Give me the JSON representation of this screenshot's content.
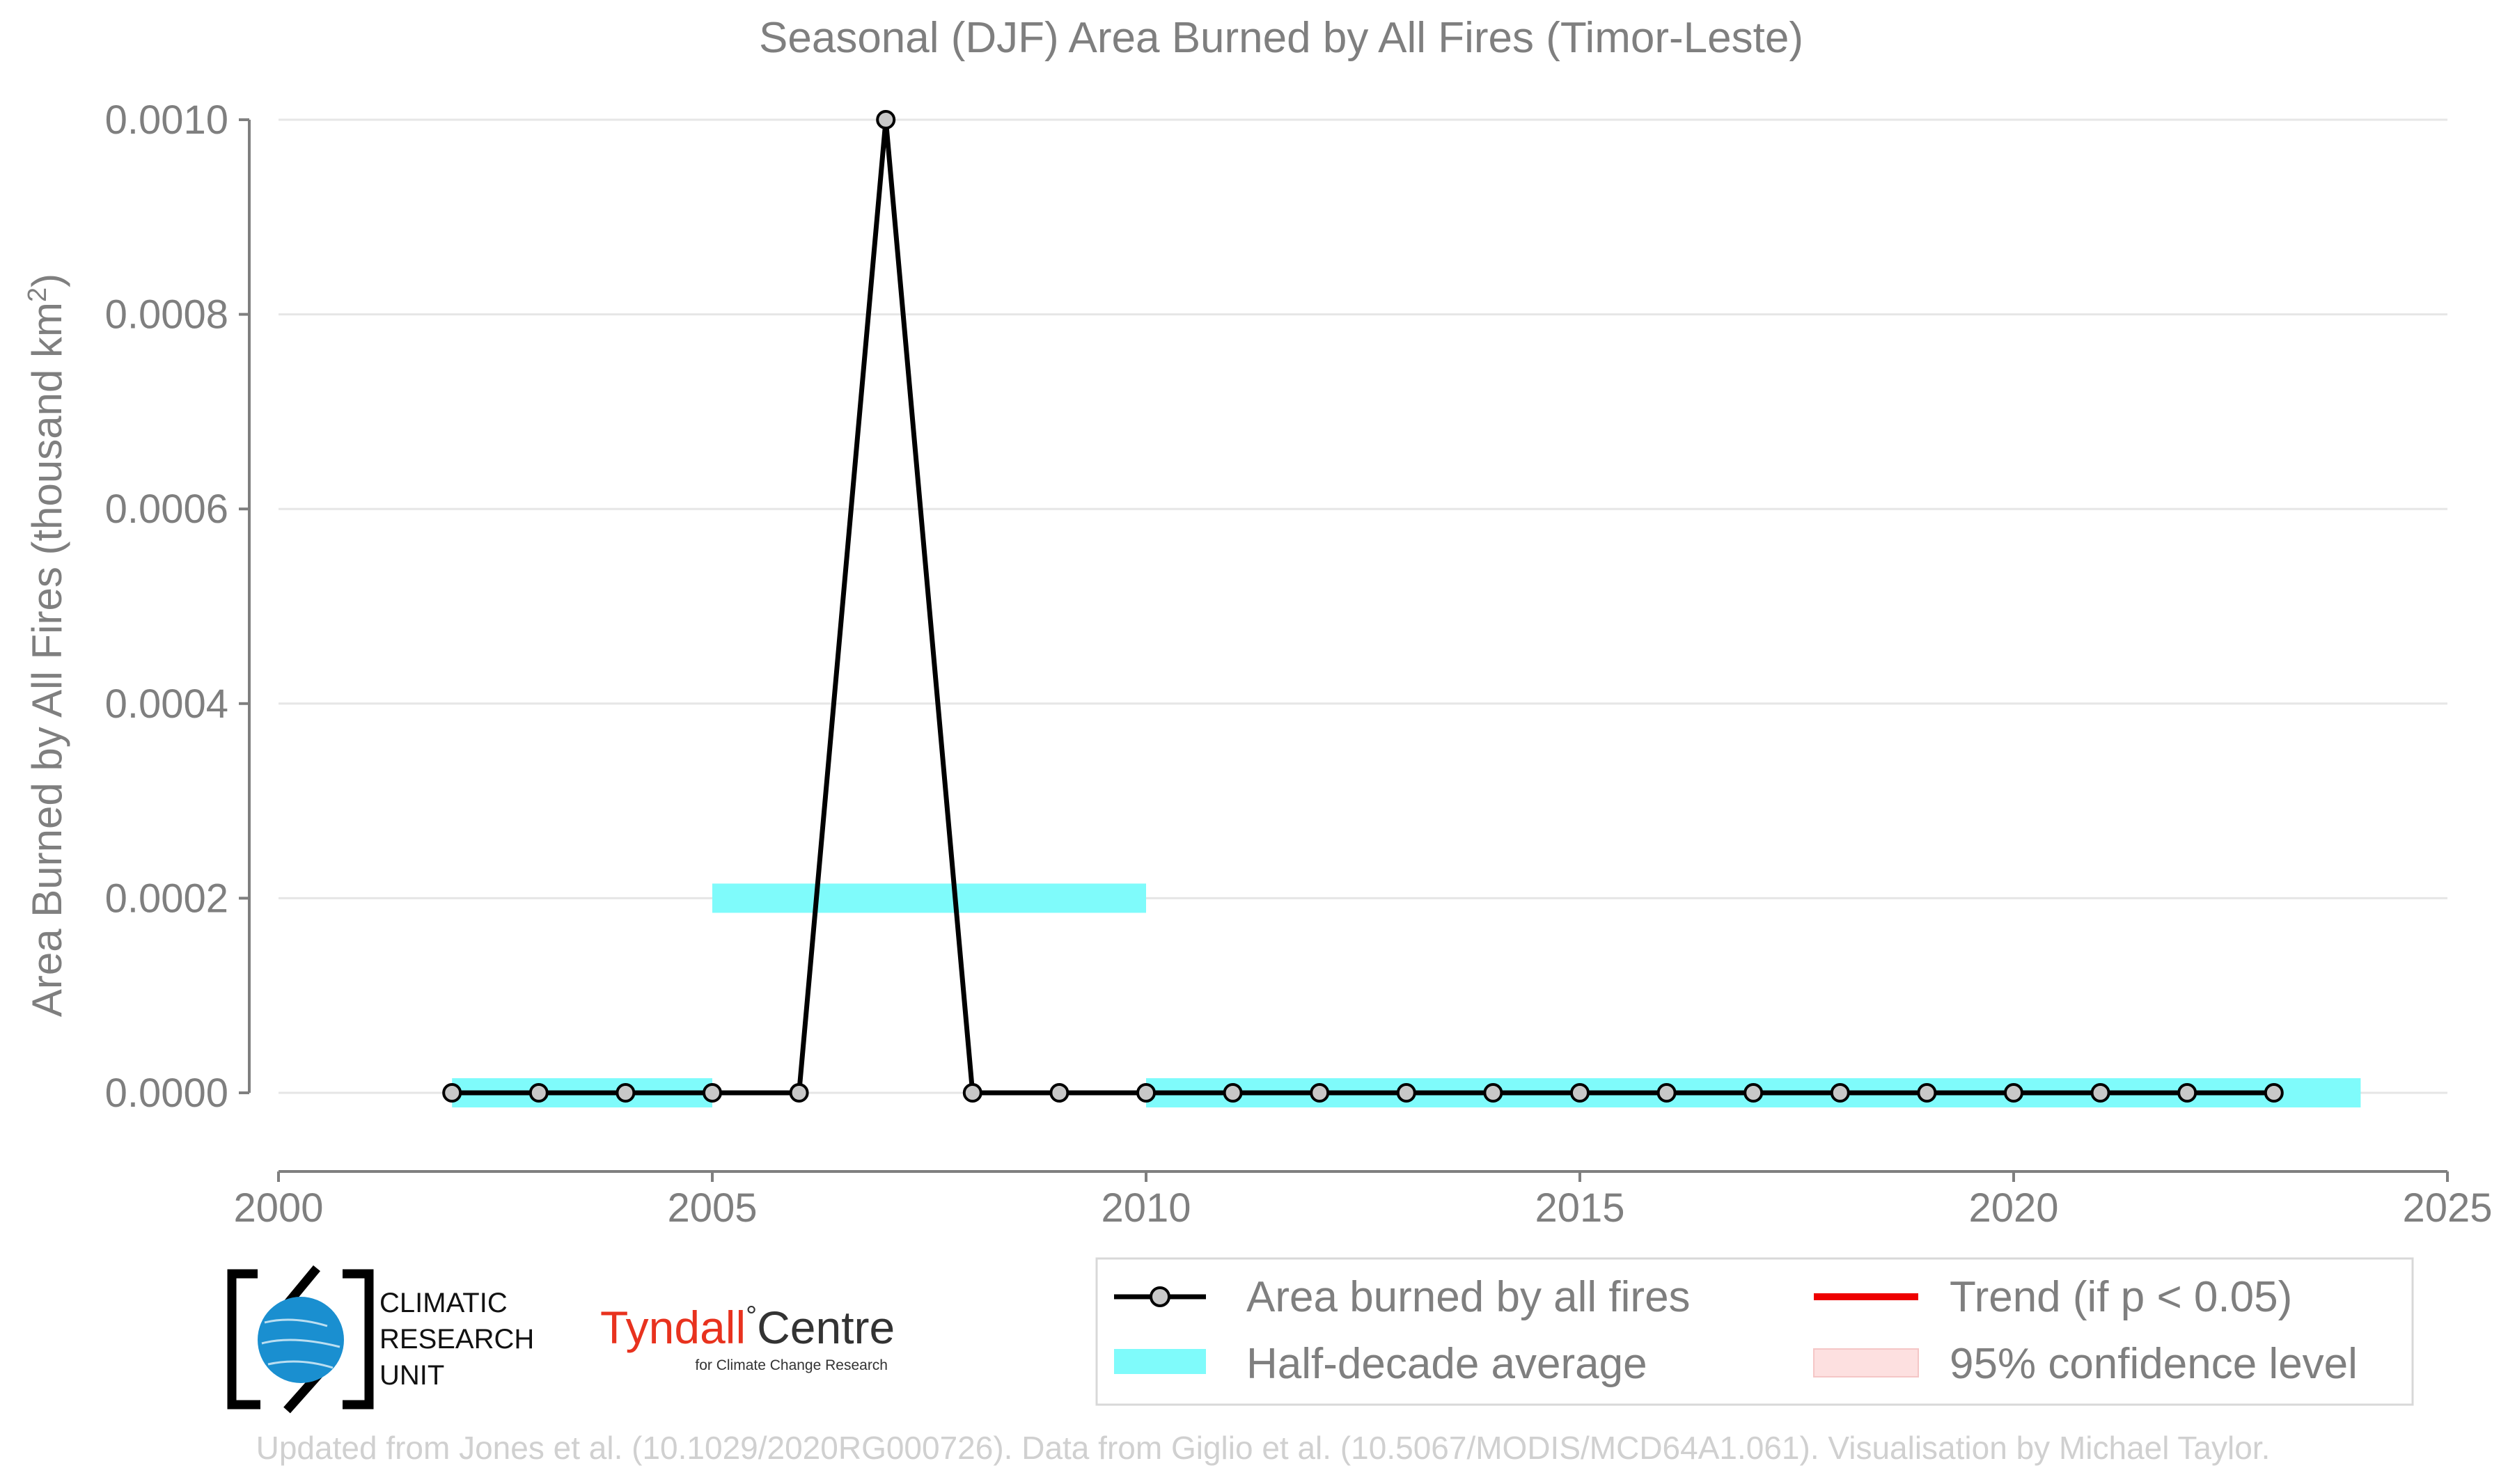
{
  "chart_data": {
    "type": "line",
    "title": "Seasonal (DJF) Area Burned by All Fires (Timor-Leste)",
    "ylabel": "Area Burned by All Fires (thousand km",
    "ylabel_sup": "2",
    "ylabel_end": ")",
    "xlim": [
      2000,
      2025
    ],
    "ylim": [
      -8e-05,
      0.001
    ],
    "x_ticks": [
      2000,
      2005,
      2010,
      2015,
      2020,
      2025
    ],
    "x_tick_labels": [
      "2000",
      "2005",
      "2010",
      "2015",
      "2020",
      "2025"
    ],
    "y_ticks": [
      0,
      0.0002,
      0.0004,
      0.0006,
      0.0008,
      0.001
    ],
    "y_tick_labels": [
      "0.0000",
      "0.0002",
      "0.0004",
      "0.0006",
      "0.0008",
      "0.0010"
    ],
    "grid": "horizontal",
    "series": [
      {
        "name": "Area burned by all fires",
        "color": "#000000",
        "x": [
          2002,
          2003,
          2004,
          2005,
          2006,
          2007,
          2008,
          2009,
          2010,
          2011,
          2012,
          2013,
          2014,
          2015,
          2016,
          2017,
          2018,
          2019,
          2020,
          2021,
          2022,
          2023
        ],
        "y": [
          0,
          0,
          0,
          0,
          0,
          0.001,
          0,
          0,
          0,
          0,
          0,
          0,
          0,
          0,
          0,
          0,
          0,
          0,
          0,
          0,
          0,
          0
        ]
      }
    ],
    "half_decade_averages": [
      {
        "x_start": 2002,
        "x_end": 2005,
        "value": 0
      },
      {
        "x_start": 2005,
        "x_end": 2010,
        "value": 0.0002
      },
      {
        "x_start": 2010,
        "x_end": 2024,
        "value": 0
      }
    ],
    "legend": {
      "placement": "bottom-right",
      "entries": [
        {
          "label": "Area burned by all fires",
          "kind": "line-marker",
          "color": "#000000"
        },
        {
          "label": "Trend (if p < 0.05)",
          "kind": "line",
          "color": "#ee0000"
        },
        {
          "label": "Half-decade average",
          "kind": "band",
          "color": "#7ffbfb"
        },
        {
          "label": "95% confidence level",
          "kind": "band",
          "color": "#fde0e0"
        }
      ]
    }
  },
  "logos": {
    "cru": [
      "CLIMATIC",
      "RESEARCH",
      "UNIT"
    ],
    "tyndall_main": "Tyndall",
    "tyndall_degree": "°",
    "tyndall_centre": "Centre",
    "tyndall_sub": "for Climate Change Research"
  },
  "credit": "Updated from Jones et al. (10.1029/2020RG000726). Data from Giglio et al. (10.5067/MODIS/MCD64A1.061). Visualisation by Michael Taylor.",
  "colors": {
    "axis_text": "#7f7f7f",
    "grid": "#e6e6e6",
    "line": "#000000",
    "marker_fill": "#c8c8c8",
    "half_decade": "#7ffbfb",
    "trend": "#ee0000",
    "confidence": "#fde0e0",
    "cru_blue": "#1a8fd0",
    "tyndall_red": "#e8321e"
  }
}
